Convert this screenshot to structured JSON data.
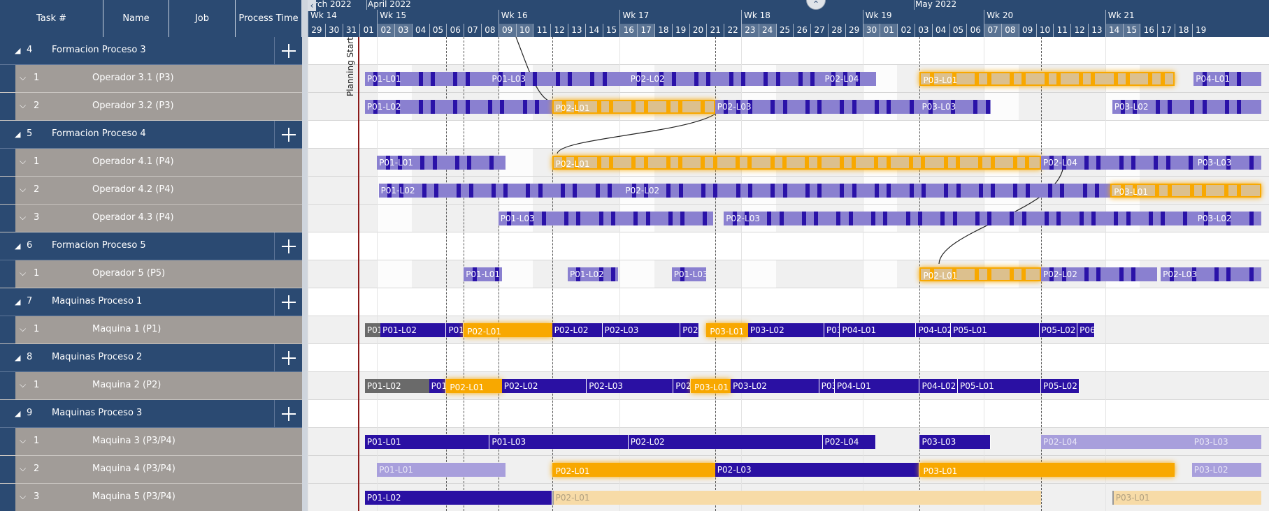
{
  "header": {
    "columns": [
      {
        "label": "Task #",
        "x": 0,
        "w": 148
      },
      {
        "label": "Name",
        "x": 148,
        "w": 94
      },
      {
        "label": "Job",
        "x": 242,
        "w": 95
      },
      {
        "label": "Process Time",
        "x": 337,
        "w": 95
      }
    ],
    "months": [
      "arch 2022",
      "April 2022",
      "May 2022"
    ],
    "weeks": [
      "Wk 14",
      "Wk 15",
      "Wk 16",
      "Wk 17",
      "Wk 18",
      "Wk 19",
      "Wk 20",
      "Wk 21"
    ],
    "days": [
      "29",
      "30",
      "31",
      "01",
      "02",
      "03",
      "04",
      "05",
      "06",
      "07",
      "08",
      "09",
      "10",
      "11",
      "12",
      "13",
      "14",
      "15",
      "16",
      "17",
      "18",
      "19",
      "20",
      "21",
      "22",
      "23",
      "24",
      "25",
      "26",
      "27",
      "28",
      "29",
      "30",
      "01",
      "02",
      "03",
      "04",
      "05",
      "06",
      "07",
      "08",
      "09",
      "10",
      "11",
      "12",
      "13",
      "14",
      "15",
      "16",
      "17",
      "18",
      "19"
    ]
  },
  "planning_start_label": "Planning Start",
  "rows": [
    {
      "type": "group",
      "num": "4",
      "name": "Formacion Proceso 3"
    },
    {
      "type": "res",
      "num": "1",
      "name": "Operador 3.1 (P3)"
    },
    {
      "type": "res",
      "num": "2",
      "name": "Operador 3.2 (P3)"
    },
    {
      "type": "group",
      "num": "5",
      "name": "Formacion Proceso 4"
    },
    {
      "type": "res",
      "num": "1",
      "name": "Operador 4.1 (P4)"
    },
    {
      "type": "res",
      "num": "2",
      "name": "Operador 4.2 (P4)"
    },
    {
      "type": "res",
      "num": "3",
      "name": "Operador 4.3 (P4)"
    },
    {
      "type": "group",
      "num": "6",
      "name": "Formacion Proceso 5"
    },
    {
      "type": "res",
      "num": "1",
      "name": "Operador 5 (P5)"
    },
    {
      "type": "group",
      "num": "7",
      "name": "Maquinas Proceso 1"
    },
    {
      "type": "res",
      "num": "1",
      "name": "Maquina 1 (P1)"
    },
    {
      "type": "group",
      "num": "8",
      "name": "Maquinas Proceso 2"
    },
    {
      "type": "res",
      "num": "1",
      "name": "Maquina 2 (P2)"
    },
    {
      "type": "group",
      "num": "9",
      "name": "Maquinas Proceso 3"
    },
    {
      "type": "res",
      "num": "1",
      "name": "Maquina 3 (P3/P4)"
    },
    {
      "type": "res",
      "num": "2",
      "name": "Maquina 4 (P3/P4)"
    },
    {
      "type": "res",
      "num": "3",
      "name": "Maquina 5 (P3/P4)"
    }
  ],
  "colors": {
    "header": "#2b4a72",
    "operator_bar": "#8a80d0",
    "operator_tick": "#2a12a8",
    "machine_bar": "#2a10a3",
    "highlight": "#f8a800",
    "highlight_fill": "#dcc08e",
    "done": "#6a6a6a",
    "faded": "#a89fdc",
    "pale": "#f7dba7"
  },
  "bars": [
    {
      "row": 1,
      "label": "P01-L01",
      "s": 3.3,
      "e": 10.5,
      "k": "op"
    },
    {
      "row": 1,
      "label": "P01-L03",
      "s": 10.5,
      "e": 18.5,
      "k": "op"
    },
    {
      "row": 1,
      "label": "P02-L02",
      "s": 18.5,
      "e": 29.7,
      "k": "op"
    },
    {
      "row": 1,
      "label": "P02-L04",
      "s": 29.7,
      "e": 32.8,
      "k": "op"
    },
    {
      "row": 1,
      "label": "P03-L01",
      "s": 35.3,
      "e": 50.0,
      "k": "hl"
    },
    {
      "row": 1,
      "label": "P04-L01",
      "s": 51.1,
      "e": 55.0,
      "k": "op"
    },
    {
      "row": 2,
      "label": "P01-L02",
      "s": 3.3,
      "e": 14.1,
      "k": "op"
    },
    {
      "row": 2,
      "label": "P02-L01",
      "s": 14.1,
      "e": 23.5,
      "k": "hl"
    },
    {
      "row": 2,
      "label": "P02-L03",
      "s": 23.5,
      "e": 35.3,
      "k": "op"
    },
    {
      "row": 2,
      "label": "P03-L03",
      "s": 35.3,
      "e": 39.4,
      "k": "op"
    },
    {
      "row": 2,
      "label": "P03-L02",
      "s": 46.4,
      "e": 55.0,
      "k": "op"
    },
    {
      "row": 4,
      "label": "P01-L01",
      "s": 4.0,
      "e": 11.4,
      "k": "op"
    },
    {
      "row": 4,
      "label": "P02-L01",
      "s": 14.1,
      "e": 42.3,
      "k": "hl"
    },
    {
      "row": 4,
      "label": "P02-L04",
      "s": 42.3,
      "e": 51.2,
      "k": "op"
    },
    {
      "row": 4,
      "label": "P03-L03",
      "s": 51.2,
      "e": 55.0,
      "k": "op"
    },
    {
      "row": 5,
      "label": "P01-L02",
      "s": 4.1,
      "e": 18.2,
      "k": "op"
    },
    {
      "row": 5,
      "label": "P02-L02",
      "s": 18.2,
      "e": 46.3,
      "k": "op"
    },
    {
      "row": 5,
      "label": "P03-L01",
      "s": 46.3,
      "e": 55.0,
      "k": "hl"
    },
    {
      "row": 6,
      "label": "P01-L03",
      "s": 11.0,
      "e": 23.4,
      "k": "op"
    },
    {
      "row": 6,
      "label": "P02-L03",
      "s": 24.0,
      "e": 51.2,
      "k": "op"
    },
    {
      "row": 6,
      "label": "P03-L02",
      "s": 51.2,
      "e": 55.0,
      "k": "op"
    },
    {
      "row": 8,
      "label": "P01-L01",
      "s": 9.0,
      "e": 11.2,
      "k": "op"
    },
    {
      "row": 8,
      "label": "P01-L02",
      "s": 15.0,
      "e": 17.9,
      "k": "op"
    },
    {
      "row": 8,
      "label": "P01-L03",
      "s": 21.0,
      "e": 23.0,
      "k": "op"
    },
    {
      "row": 8,
      "label": "P02-L01",
      "s": 35.3,
      "e": 42.3,
      "k": "hl"
    },
    {
      "row": 8,
      "label": "P02-L02",
      "s": 42.3,
      "e": 49.0,
      "k": "op"
    },
    {
      "row": 8,
      "label": "P02-L03",
      "s": 49.2,
      "e": 55.0,
      "k": "op"
    },
    {
      "row": 10,
      "label": "P01",
      "s": 3.3,
      "e": 4.2,
      "k": "done"
    },
    {
      "row": 10,
      "label": "P01-L02",
      "s": 4.2,
      "e": 8.0,
      "k": "m"
    },
    {
      "row": 10,
      "label": "P01-",
      "s": 8.0,
      "e": 9.0,
      "k": "m"
    },
    {
      "row": 10,
      "label": "P02-L01",
      "s": 9.0,
      "e": 14.1,
      "k": "hl"
    },
    {
      "row": 10,
      "label": "P02-L02",
      "s": 14.1,
      "e": 17.0,
      "k": "m"
    },
    {
      "row": 10,
      "label": "P02-L03",
      "s": 17.0,
      "e": 21.5,
      "k": "m"
    },
    {
      "row": 10,
      "label": "P02-",
      "s": 21.5,
      "e": 22.6,
      "k": "m"
    },
    {
      "row": 10,
      "label": "P03-L01",
      "s": 23.0,
      "e": 25.4,
      "k": "hl"
    },
    {
      "row": 10,
      "label": "P03-L02",
      "s": 25.4,
      "e": 29.8,
      "k": "m"
    },
    {
      "row": 10,
      "label": "P03-",
      "s": 29.8,
      "e": 30.7,
      "k": "m"
    },
    {
      "row": 10,
      "label": "P04-L01",
      "s": 30.7,
      "e": 35.1,
      "k": "m"
    },
    {
      "row": 10,
      "label": "P04-L02",
      "s": 35.1,
      "e": 37.1,
      "k": "m"
    },
    {
      "row": 10,
      "label": "P05-L01",
      "s": 37.1,
      "e": 42.2,
      "k": "m"
    },
    {
      "row": 10,
      "label": "P05-L02",
      "s": 42.2,
      "e": 44.4,
      "k": "m"
    },
    {
      "row": 10,
      "label": "P06",
      "s": 44.4,
      "e": 45.4,
      "k": "m"
    },
    {
      "row": 12,
      "label": "P01-L02",
      "s": 3.3,
      "e": 7.0,
      "k": "done"
    },
    {
      "row": 12,
      "label": "P01-",
      "s": 7.0,
      "e": 8.0,
      "k": "m"
    },
    {
      "row": 12,
      "label": "P02-L01",
      "s": 8.0,
      "e": 11.2,
      "k": "hl"
    },
    {
      "row": 12,
      "label": "P02-L02",
      "s": 11.2,
      "e": 16.1,
      "k": "m"
    },
    {
      "row": 12,
      "label": "P02-L03",
      "s": 16.1,
      "e": 21.1,
      "k": "m"
    },
    {
      "row": 12,
      "label": "P02-",
      "s": 21.1,
      "e": 22.1,
      "k": "m"
    },
    {
      "row": 12,
      "label": "P03-L01",
      "s": 22.1,
      "e": 24.4,
      "k": "hl"
    },
    {
      "row": 12,
      "label": "P03-L02",
      "s": 24.4,
      "e": 29.5,
      "k": "m"
    },
    {
      "row": 12,
      "label": "P03",
      "s": 29.5,
      "e": 30.4,
      "k": "m"
    },
    {
      "row": 12,
      "label": "P04-L01",
      "s": 30.4,
      "e": 35.3,
      "k": "m"
    },
    {
      "row": 12,
      "label": "P04-L02",
      "s": 35.3,
      "e": 37.5,
      "k": "m"
    },
    {
      "row": 12,
      "label": "P05-L01",
      "s": 37.5,
      "e": 42.3,
      "k": "m"
    },
    {
      "row": 12,
      "label": "P05-L02",
      "s": 42.3,
      "e": 44.5,
      "k": "m"
    },
    {
      "row": 14,
      "label": "P01-L01",
      "s": 3.3,
      "e": 10.5,
      "k": "m"
    },
    {
      "row": 14,
      "label": "P01-L03",
      "s": 10.5,
      "e": 18.5,
      "k": "m"
    },
    {
      "row": 14,
      "label": "P02-L02",
      "s": 18.5,
      "e": 29.7,
      "k": "m"
    },
    {
      "row": 14,
      "label": "P02-L04",
      "s": 29.7,
      "e": 32.8,
      "k": "m"
    },
    {
      "row": 14,
      "label": "P03-L03",
      "s": 35.3,
      "e": 39.4,
      "k": "m"
    },
    {
      "row": 14,
      "label": "P02-L04",
      "s": 42.3,
      "e": 51.0,
      "k": "faded"
    },
    {
      "row": 14,
      "label": "P03-L03",
      "s": 51.0,
      "e": 55.0,
      "k": "faded"
    },
    {
      "row": 15,
      "label": "P01-L01",
      "s": 4.0,
      "e": 11.4,
      "k": "faded"
    },
    {
      "row": 15,
      "label": "P02-L01",
      "s": 14.1,
      "e": 23.5,
      "k": "hl"
    },
    {
      "row": 15,
      "label": "P02-L03",
      "s": 23.5,
      "e": 35.3,
      "k": "m"
    },
    {
      "row": 15,
      "label": "P03-L01",
      "s": 35.3,
      "e": 50.0,
      "k": "hl"
    },
    {
      "row": 15,
      "label": "P03-L02",
      "s": 51.0,
      "e": 55.0,
      "k": "faded"
    },
    {
      "row": 16,
      "label": "P01-L02",
      "s": 3.3,
      "e": 14.1,
      "k": "m"
    },
    {
      "row": 16,
      "label": "P02-L01",
      "s": 14.1,
      "e": 42.3,
      "k": "pale"
    },
    {
      "row": 16,
      "label": "P03-L01",
      "s": 46.4,
      "e": 55.0,
      "k": "pale"
    }
  ]
}
